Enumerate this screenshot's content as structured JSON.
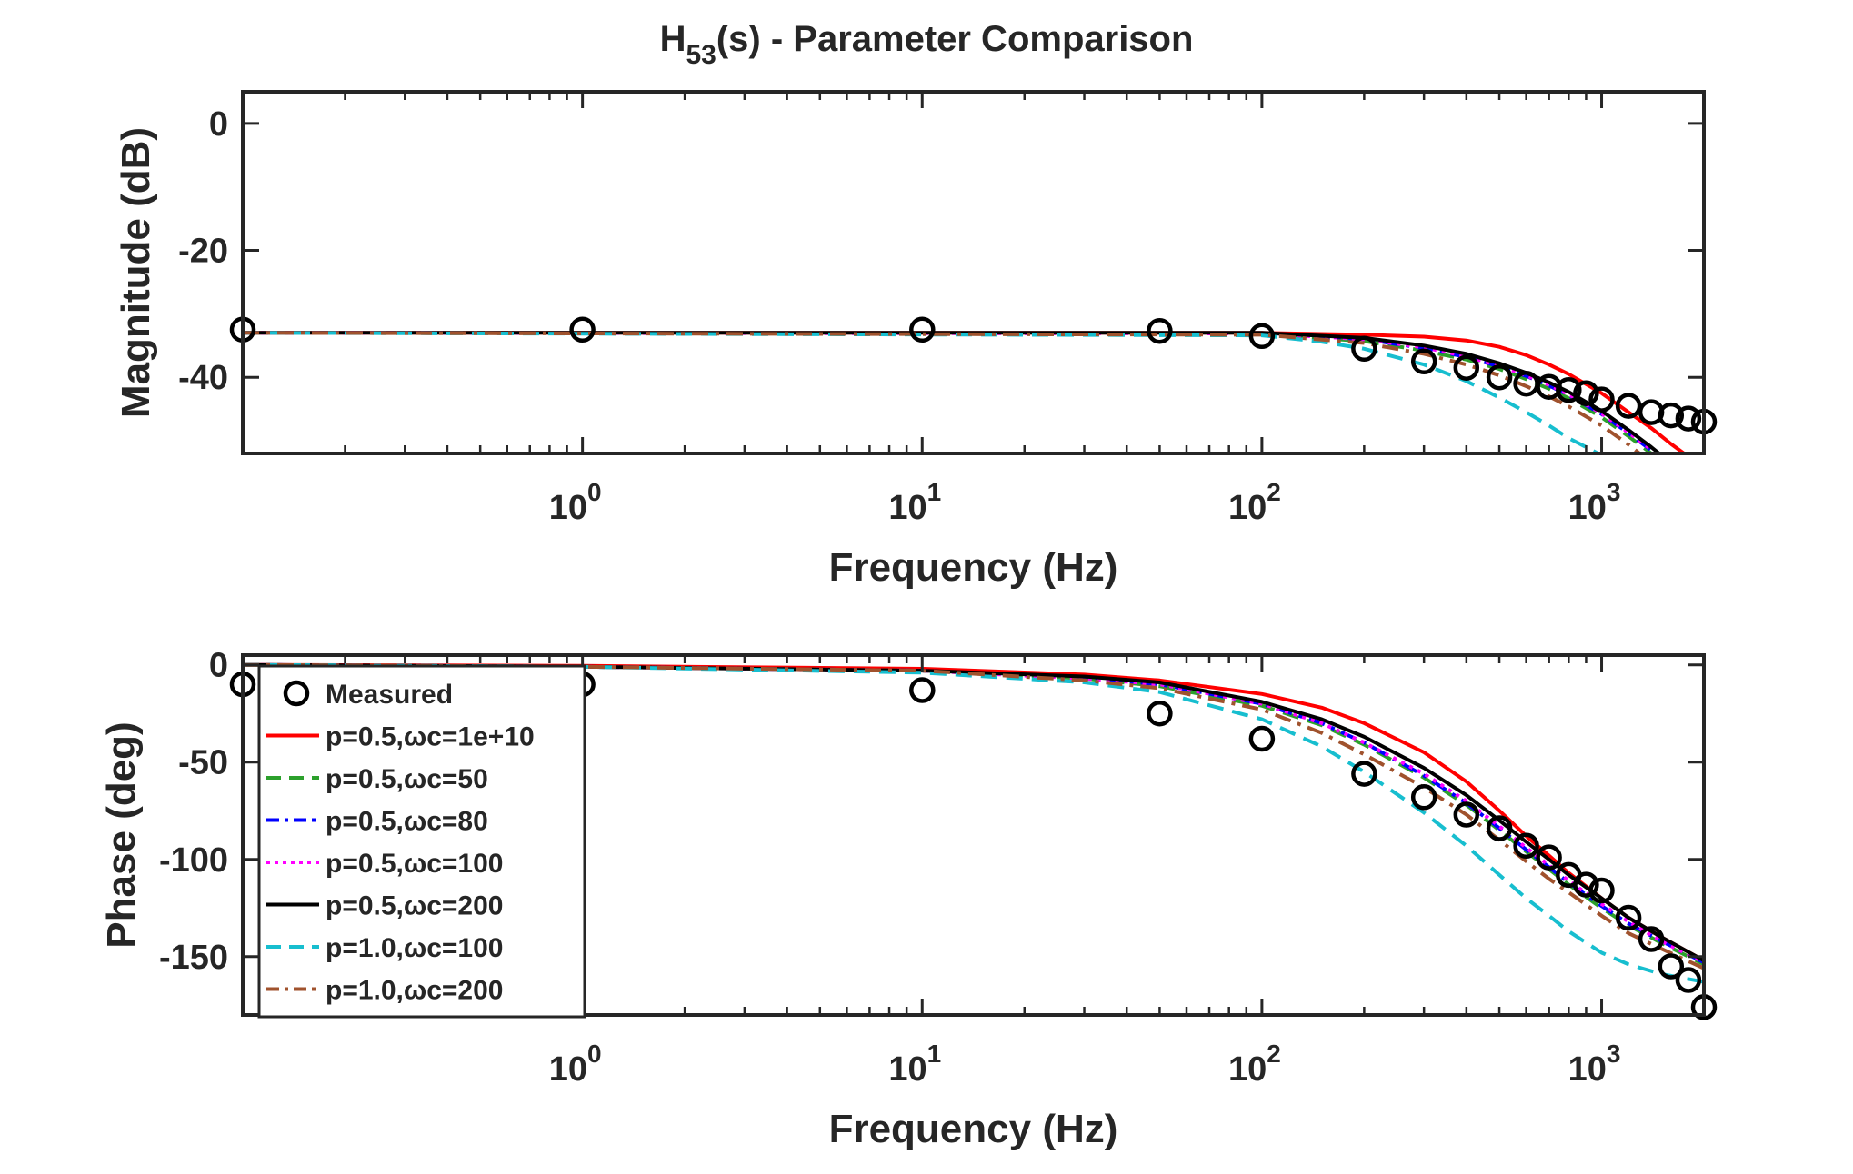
{
  "figure": {
    "title_main": "H",
    "title_sub": "53",
    "title_rest": "(s) - Parameter Comparison"
  },
  "chart_data": [
    {
      "id": "magnitude",
      "type": "line",
      "xscale": "log",
      "xlim": [
        0.1,
        2000
      ],
      "ylim": [
        -52,
        5
      ],
      "xlabel": "Frequency (Hz)",
      "ylabel": "Magnitude (dB)",
      "xticks": [
        {
          "v": 1,
          "base": "10",
          "exp": "0"
        },
        {
          "v": 10,
          "base": "10",
          "exp": "1"
        },
        {
          "v": 100,
          "base": "10",
          "exp": "2"
        },
        {
          "v": 1000,
          "base": "10",
          "exp": "3"
        }
      ],
      "yticks": [
        {
          "v": 0,
          "label": "0"
        },
        {
          "v": -20,
          "label": "-20"
        },
        {
          "v": -40,
          "label": "-40"
        }
      ],
      "grid": false,
      "measured": {
        "name": "Measured",
        "x": [
          0.1,
          1,
          10,
          50,
          100,
          200,
          300,
          400,
          500,
          600,
          700,
          800,
          900,
          1000,
          1200,
          1400,
          1600,
          1800,
          2000
        ],
        "y": [
          -32.5,
          -32.5,
          -32.5,
          -32.7,
          -33.5,
          -35.5,
          -37.5,
          -38.5,
          -40,
          -41,
          -41.5,
          -42,
          -42.5,
          -43.5,
          -44.5,
          -45.5,
          -46,
          -46.5,
          -47
        ]
      },
      "series": [
        {
          "name": "p=0.5,ωc=1e+10",
          "color": "#ff0000",
          "dash": "none",
          "x": [
            0.1,
            100,
            200,
            300,
            400,
            500,
            600,
            700,
            800,
            1000,
            1200,
            1400,
            1600,
            1800
          ],
          "y": [
            -33,
            -33,
            -33.3,
            -33.6,
            -34.2,
            -35.2,
            -36.5,
            -38,
            -39.5,
            -42.5,
            -45.5,
            -48,
            -50.5,
            -52.5
          ]
        },
        {
          "name": "p=0.5,ωc=50",
          "color": "#2ca02c",
          "dash": "18,10",
          "x": [
            0.1,
            100,
            200,
            300,
            400,
            500,
            600,
            700,
            800,
            1000,
            1200,
            1400
          ],
          "y": [
            -33,
            -33.2,
            -34.3,
            -35.8,
            -37.2,
            -38.7,
            -40.3,
            -41.8,
            -43.3,
            -46.3,
            -49.3,
            -52
          ]
        },
        {
          "name": "p=0.5,ωc=80",
          "color": "#0000ff",
          "dash": "18,8,4,8",
          "x": [
            0.1,
            100,
            200,
            300,
            400,
            500,
            600,
            700,
            800,
            1000,
            1200,
            1400
          ],
          "y": [
            -33,
            -33.1,
            -34,
            -35.4,
            -36.8,
            -38.3,
            -39.8,
            -41.3,
            -42.8,
            -45.8,
            -48.8,
            -51.5
          ]
        },
        {
          "name": "p=0.5,ωc=100",
          "color": "#ff00ff",
          "dash": "4,6",
          "x": [
            0.1,
            100,
            200,
            300,
            400,
            500,
            600,
            700,
            800,
            1000,
            1200,
            1400
          ],
          "y": [
            -33,
            -33.1,
            -34,
            -35.3,
            -36.7,
            -38.2,
            -39.7,
            -41.2,
            -42.7,
            -45.7,
            -48.7,
            -51.4
          ]
        },
        {
          "name": "p=0.5,ωc=200",
          "color": "#000000",
          "dash": "none",
          "x": [
            0.1,
            100,
            200,
            300,
            400,
            500,
            600,
            700,
            800,
            1000,
            1200,
            1400,
            1500
          ],
          "y": [
            -33,
            -33,
            -33.8,
            -35,
            -36.3,
            -37.8,
            -39.3,
            -40.8,
            -42.3,
            -45.3,
            -48.3,
            -51,
            -52.3
          ]
        },
        {
          "name": "p=1.0,ωc=100",
          "color": "#17becf",
          "dash": "18,10",
          "x": [
            0.1,
            100,
            150,
            200,
            300,
            400,
            500,
            600,
            700,
            800,
            900,
            1000
          ],
          "y": [
            -33,
            -33.4,
            -34.4,
            -35.5,
            -38,
            -40.6,
            -43.2,
            -45.5,
            -47.6,
            -49.6,
            -51,
            -52.3
          ]
        },
        {
          "name": "p=1.0,ωc=200",
          "color": "#a0522d",
          "dash": "18,8,4,8",
          "x": [
            0.1,
            100,
            200,
            300,
            400,
            500,
            600,
            700,
            800,
            1000,
            1200,
            1300
          ],
          "y": [
            -33,
            -33.3,
            -34.6,
            -36.3,
            -38,
            -39.7,
            -41.4,
            -43,
            -44.6,
            -47.6,
            -50.6,
            -52.1
          ]
        }
      ]
    },
    {
      "id": "phase",
      "type": "line",
      "xscale": "log",
      "xlim": [
        0.1,
        2000
      ],
      "ylim": [
        -180,
        5
      ],
      "xlabel": "Frequency (Hz)",
      "ylabel": "Phase (deg)",
      "xticks": [
        {
          "v": 1,
          "base": "10",
          "exp": "0"
        },
        {
          "v": 10,
          "base": "10",
          "exp": "1"
        },
        {
          "v": 100,
          "base": "10",
          "exp": "2"
        },
        {
          "v": 1000,
          "base": "10",
          "exp": "3"
        }
      ],
      "yticks": [
        {
          "v": 0,
          "label": "0"
        },
        {
          "v": -50,
          "label": "-50"
        },
        {
          "v": -100,
          "label": "-100"
        },
        {
          "v": -150,
          "label": "-150"
        }
      ],
      "grid": false,
      "legend_position": "top-left",
      "measured": {
        "name": "Measured",
        "x": [
          0.1,
          1,
          10,
          50,
          100,
          200,
          300,
          400,
          500,
          600,
          700,
          800,
          900,
          1000,
          1200,
          1400,
          1600,
          1800,
          2000
        ],
        "y": [
          -10,
          -10,
          -13,
          -25,
          -38,
          -56,
          -68,
          -77,
          -84,
          -93,
          -99,
          -108,
          -113,
          -116,
          -130,
          -141,
          -155,
          -162,
          -176
        ]
      },
      "series": [
        {
          "name": "p=0.5,ωc=1e+10",
          "color": "#ff0000",
          "dash": "none",
          "x": [
            0.1,
            1,
            10,
            30,
            50,
            100,
            150,
            200,
            300,
            400,
            500,
            600,
            700,
            800,
            1000,
            1200,
            1500,
            2000
          ],
          "y": [
            0,
            -0.5,
            -2,
            -5,
            -8,
            -15,
            -22,
            -30,
            -45,
            -60,
            -75,
            -88,
            -98,
            -107,
            -120,
            -130,
            -140,
            -152
          ]
        },
        {
          "name": "p=0.5,ωc=50",
          "color": "#2ca02c",
          "dash": "18,10",
          "x": [
            0.1,
            1,
            10,
            30,
            50,
            100,
            150,
            200,
            300,
            400,
            500,
            600,
            700,
            800,
            1000,
            1200,
            1500,
            2000
          ],
          "y": [
            0,
            -1,
            -3,
            -7,
            -11,
            -21,
            -31,
            -41,
            -58,
            -72,
            -85,
            -96,
            -105,
            -113,
            -125,
            -134,
            -143,
            -154
          ]
        },
        {
          "name": "p=0.5,ωc=80",
          "color": "#0000ff",
          "dash": "18,8,4,8",
          "x": [
            0.1,
            1,
            10,
            30,
            50,
            100,
            150,
            200,
            300,
            400,
            500,
            600,
            700,
            800,
            1000,
            1200,
            1500,
            2000
          ],
          "y": [
            0,
            -1,
            -3,
            -7,
            -10,
            -20,
            -30,
            -40,
            -57,
            -71,
            -84,
            -95,
            -104,
            -112,
            -124,
            -133,
            -142,
            -153
          ]
        },
        {
          "name": "p=0.5,ωc=100",
          "color": "#ff00ff",
          "dash": "4,6",
          "x": [
            0.1,
            1,
            10,
            30,
            50,
            100,
            150,
            200,
            300,
            400,
            500,
            600,
            700,
            800,
            1000,
            1200,
            1500,
            2000
          ],
          "y": [
            0,
            -1,
            -3,
            -7,
            -10,
            -20,
            -30,
            -40,
            -56,
            -70,
            -83,
            -94,
            -103,
            -111,
            -123,
            -132,
            -142,
            -153
          ]
        },
        {
          "name": "p=0.5,ωc=200",
          "color": "#000000",
          "dash": "none",
          "x": [
            0.1,
            1,
            10,
            30,
            50,
            100,
            150,
            200,
            300,
            400,
            500,
            600,
            700,
            800,
            1000,
            1200,
            1500,
            2000
          ],
          "y": [
            0,
            -1,
            -3,
            -6,
            -9,
            -19,
            -28,
            -37,
            -53,
            -67,
            -80,
            -91,
            -100,
            -108,
            -120,
            -130,
            -140,
            -152
          ]
        },
        {
          "name": "p=1.0,ωc=100",
          "color": "#17becf",
          "dash": "18,10",
          "x": [
            0.1,
            1,
            10,
            30,
            50,
            100,
            150,
            200,
            300,
            400,
            500,
            600,
            700,
            800,
            1000,
            1200,
            1500,
            2000
          ],
          "y": [
            0,
            -1,
            -4,
            -9,
            -14,
            -28,
            -42,
            -55,
            -76,
            -93,
            -108,
            -120,
            -129,
            -137,
            -148,
            -154,
            -159,
            -163
          ]
        },
        {
          "name": "p=1.0,ωc=200",
          "color": "#a0522d",
          "dash": "18,8,4,8",
          "x": [
            0.1,
            1,
            10,
            30,
            50,
            100,
            150,
            200,
            300,
            400,
            500,
            600,
            700,
            800,
            1000,
            1200,
            1500,
            2000
          ],
          "y": [
            0,
            -1,
            -3,
            -8,
            -12,
            -23,
            -35,
            -46,
            -63,
            -77,
            -90,
            -101,
            -110,
            -117,
            -129,
            -138,
            -146,
            -156
          ]
        }
      ]
    }
  ]
}
